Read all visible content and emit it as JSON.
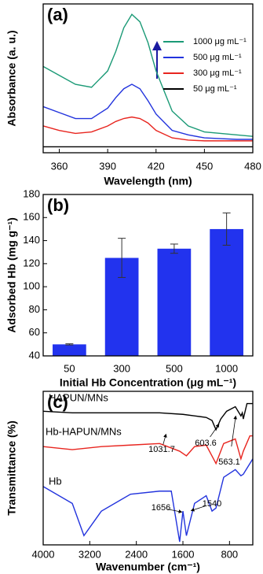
{
  "chart_data": [
    {
      "type": "line",
      "panel_label": "(a)",
      "x_label": "Wavelength (nm)",
      "y_label": "Absorbance (a. u.)",
      "xlim": [
        350,
        480
      ],
      "xticks": [
        360,
        390,
        420,
        450,
        480
      ],
      "ylim": [
        0,
        1
      ],
      "legend": "upper right",
      "series": [
        {
          "name": "1000 μg mL⁻¹",
          "color": "#1b9a76",
          "x": [
            350,
            360,
            370,
            380,
            390,
            395,
            400,
            405,
            410,
            415,
            420,
            430,
            440,
            450,
            460,
            470,
            480
          ],
          "values": [
            0.58,
            0.52,
            0.46,
            0.44,
            0.55,
            0.68,
            0.84,
            0.93,
            0.88,
            0.74,
            0.55,
            0.28,
            0.18,
            0.14,
            0.13,
            0.12,
            0.11
          ]
        },
        {
          "name": "500 μg mL⁻¹",
          "color": "#2233dd",
          "x": [
            350,
            360,
            370,
            380,
            390,
            395,
            400,
            405,
            410,
            415,
            420,
            430,
            440,
            450,
            460,
            470,
            480
          ],
          "values": [
            0.31,
            0.27,
            0.23,
            0.23,
            0.3,
            0.37,
            0.43,
            0.46,
            0.43,
            0.35,
            0.26,
            0.15,
            0.12,
            0.1,
            0.095,
            0.09,
            0.09
          ]
        },
        {
          "name": "300 μg mL⁻¹",
          "color": "#e8251f",
          "x": [
            350,
            360,
            370,
            380,
            390,
            395,
            400,
            405,
            410,
            415,
            420,
            430,
            440,
            450,
            460,
            470,
            480
          ],
          "values": [
            0.18,
            0.15,
            0.13,
            0.14,
            0.18,
            0.21,
            0.23,
            0.24,
            0.23,
            0.2,
            0.15,
            0.1,
            0.085,
            0.08,
            0.08,
            0.08,
            0.08
          ]
        },
        {
          "name": "50 μg mL⁻¹",
          "color": "#000000",
          "x": [
            350,
            480
          ],
          "values": [
            0.04,
            0.04
          ]
        }
      ]
    },
    {
      "type": "bar",
      "panel_label": "(b)",
      "x_label": "Initial Hb Concentration (μg mL⁻¹)",
      "y_label": "Adsorbed Hb (mg g⁻¹)",
      "categories": [
        "50",
        "300",
        "500",
        "1000"
      ],
      "values": [
        50,
        125,
        133,
        150
      ],
      "errors": [
        0.5,
        17,
        4,
        14
      ],
      "color": "#2233ee",
      "ylim": [
        40,
        180
      ],
      "yticks": [
        40,
        60,
        80,
        100,
        120,
        140,
        160,
        180
      ]
    },
    {
      "type": "line",
      "panel_label": "(c)",
      "x_label": "Wavenumber (cm⁻¹)",
      "y_label": "Transmittance (%)",
      "xlim": [
        4000,
        400
      ],
      "xticks": [
        4000,
        3200,
        2400,
        1600,
        800
      ],
      "ylim": [
        0,
        1
      ],
      "legend": "inline",
      "series": [
        {
          "name": "HAPUN/MNs",
          "color": "#000000",
          "x": [
            4000,
            3500,
            3000,
            2500,
            2000,
            1600,
            1400,
            1200,
            1100,
            1032,
            950,
            850,
            700,
            604,
            580,
            563,
            500,
            400
          ],
          "values": [
            0.87,
            0.86,
            0.86,
            0.86,
            0.86,
            0.85,
            0.84,
            0.83,
            0.81,
            0.75,
            0.82,
            0.87,
            0.9,
            0.84,
            0.86,
            0.82,
            0.92,
            0.92
          ]
        },
        {
          "name": "Hb-HAPUN/MNs",
          "color": "#e8251f",
          "x": [
            4000,
            3500,
            3000,
            2500,
            2000,
            1656,
            1540,
            1400,
            1200,
            1032,
            900,
            700,
            604,
            563,
            450,
            400
          ],
          "values": [
            0.64,
            0.62,
            0.64,
            0.65,
            0.66,
            0.61,
            0.58,
            0.64,
            0.65,
            0.53,
            0.66,
            0.69,
            0.56,
            0.61,
            0.71,
            0.71
          ]
        },
        {
          "name": "Hb",
          "color": "#2233dd",
          "x": [
            4000,
            3500,
            3300,
            3000,
            2500,
            2000,
            1800,
            1656,
            1600,
            1540,
            1400,
            1200,
            1100,
            1032,
            900,
            700,
            604,
            563,
            400
          ],
          "values": [
            0.38,
            0.27,
            0.06,
            0.22,
            0.33,
            0.35,
            0.35,
            0.02,
            0.22,
            0.06,
            0.27,
            0.32,
            0.22,
            0.24,
            0.44,
            0.49,
            0.45,
            0.46,
            0.56
          ]
        }
      ],
      "annotations": [
        "1031.7",
        "603.6",
        "563.1",
        "1656",
        "1540"
      ]
    }
  ]
}
